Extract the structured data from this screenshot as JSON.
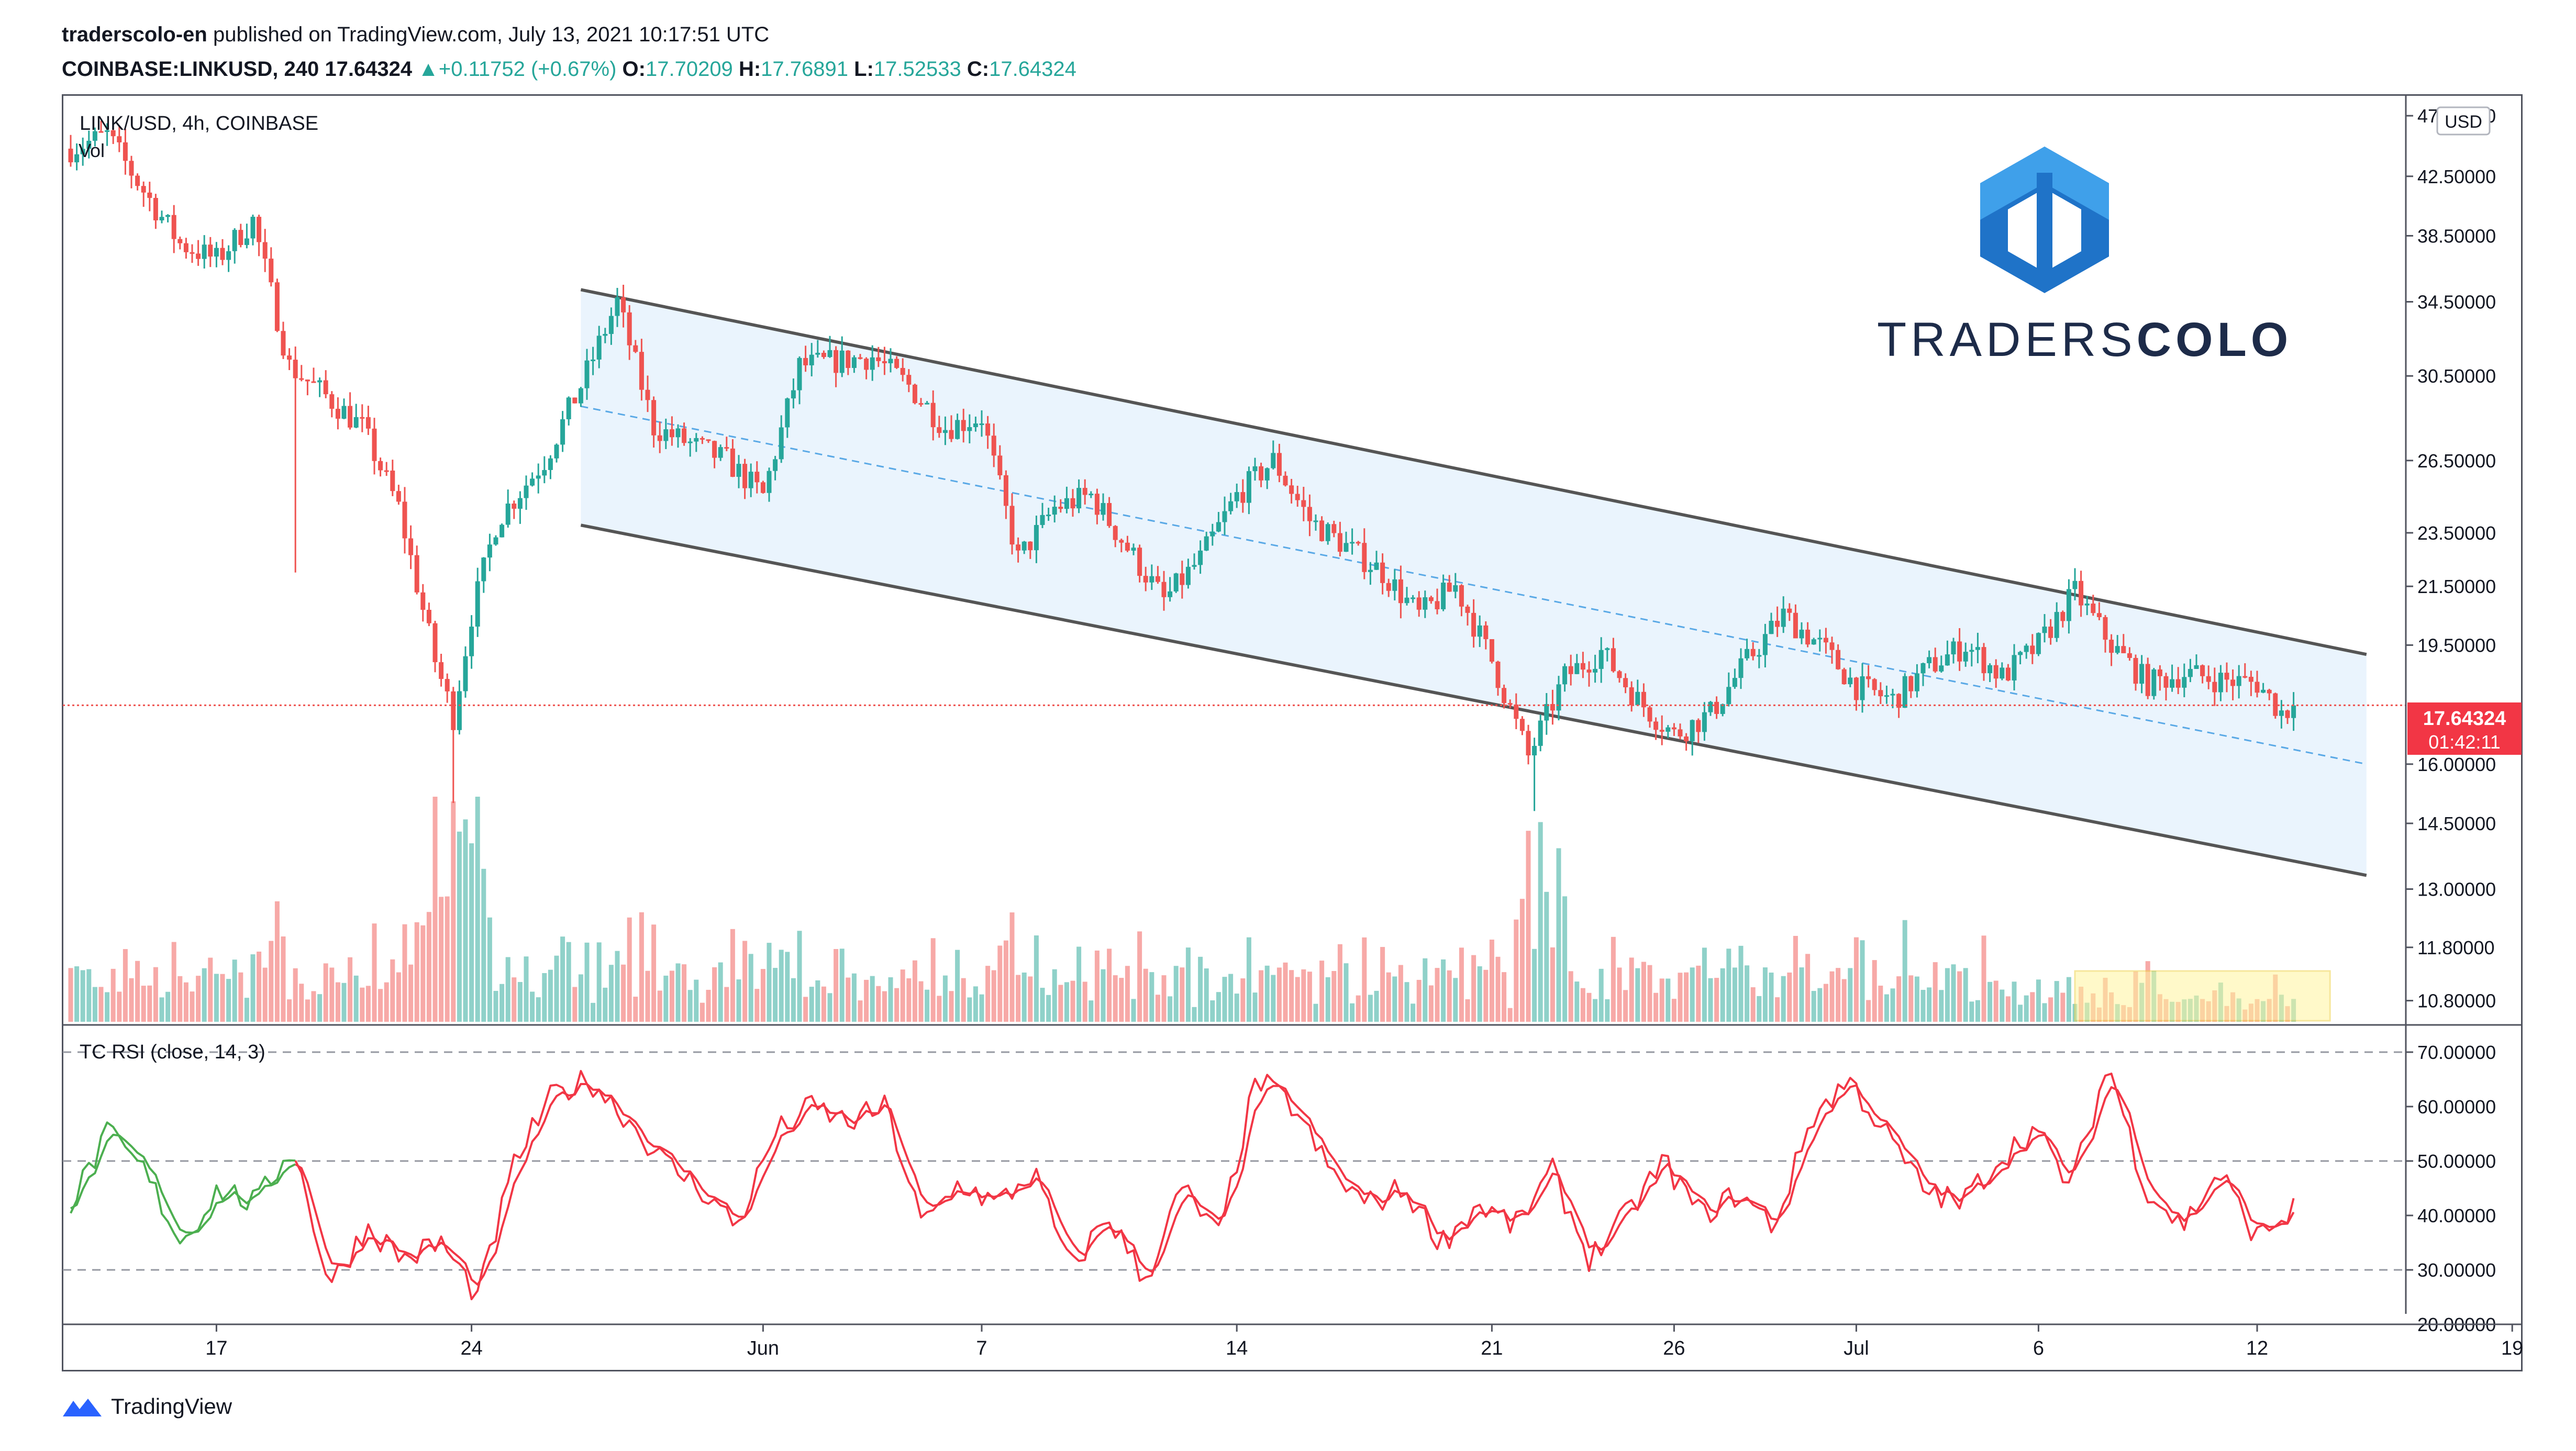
{
  "header": {
    "publisher": "traderscolo-en",
    "published_text": "published on TradingView.com, July 13, 2021 10:17:51 UTC",
    "symbol_line": "COINBASE:LINKUSD, 240",
    "last": "17.64324",
    "change_arrow": "▲",
    "change": "+0.11752 (+0.67%)",
    "o_label": "O:",
    "o_value": "17.70209",
    "h_label": "H:",
    "h_value": "17.76891",
    "l_label": "L:",
    "l_value": "17.52533",
    "c_label": "C:",
    "c_value": "17.64324"
  },
  "main_pane": {
    "legend": "LINK/USD, 4h, COINBASE",
    "vol_label": "Vol",
    "currency_badge": "USD",
    "last_price_tag": "17.64324",
    "countdown_tag": "01:42:11"
  },
  "rsi_pane": {
    "legend": "TC RSI (close, 14, 3)"
  },
  "logo": {
    "text_light": "TRADERS",
    "text_bold": "COLO"
  },
  "footer": {
    "brand": "TradingView"
  },
  "colors": {
    "up": "#26a69a",
    "down": "#ef5350",
    "channel_fill": "#e3f0fc",
    "channel_line": "#555555",
    "midline": "#5aa9e6",
    "rsi_red": "#f23645",
    "rsi_green": "#4caf50",
    "logo_blue": "#1f73c8"
  },
  "chart_data": [
    {
      "type": "candlestick",
      "symbol": "LINK/USD",
      "timeframe": "4h",
      "exchange": "COINBASE",
      "y_scale": "log",
      "ylim": [
        10.4,
        48.5
      ],
      "y_ticks": [
        "47.00000",
        "42.50000",
        "38.50000",
        "34.50000",
        "30.50000",
        "26.50000",
        "23.50000",
        "21.50000",
        "19.50000",
        "16.00000",
        "14.50000",
        "13.00000",
        "11.80000",
        "10.80000"
      ],
      "x_ticks": [
        "17",
        "24",
        "Jun",
        "7",
        "14",
        "21",
        "26",
        "Jul",
        "6",
        "12",
        "19"
      ],
      "price_path": [
        [
          "2021-05-13",
          44.5
        ],
        [
          "2021-05-14",
          45.5
        ],
        [
          "2021-05-15",
          41.5
        ],
        [
          "2021-05-16",
          38.0
        ],
        [
          "2021-05-17",
          37.0
        ],
        [
          "2021-05-18",
          39.5
        ],
        [
          "2021-05-19",
          31.0
        ],
        [
          "2021-05-20",
          29.5
        ],
        [
          "2021-05-21",
          28.0
        ],
        [
          "2021-05-22",
          24.5
        ],
        [
          "2021-05-23",
          19.0
        ],
        [
          "2021-05-23.5",
          17.3
        ],
        [
          "2021-05-24",
          20.5
        ],
        [
          "2021-05-24.7",
          24.0
        ],
        [
          "2021-05-26",
          26.5
        ],
        [
          "2021-05-27",
          30.0
        ],
        [
          "2021-05-28",
          34.5
        ],
        [
          "2021-05-29",
          28.0
        ],
        [
          "2021-05-31",
          26.5
        ],
        [
          "2021-06-01",
          25.0
        ],
        [
          "2021-06-02",
          31.0
        ],
        [
          "2021-06-04",
          31.5
        ],
        [
          "2021-06-05",
          30.0
        ],
        [
          "2021-06-06",
          28.0
        ],
        [
          "2021-06-07",
          28.5
        ],
        [
          "2021-06-08",
          22.5
        ],
        [
          "2021-06-09",
          24.5
        ],
        [
          "2021-06-10",
          25.0
        ],
        [
          "2021-06-12",
          21.0
        ],
        [
          "2021-06-13",
          22.5
        ],
        [
          "2021-06-14",
          25.0
        ],
        [
          "2021-06-15",
          26.5
        ],
        [
          "2021-06-16",
          24.0
        ],
        [
          "2021-06-18",
          22.0
        ],
        [
          "2021-06-19",
          20.5
        ],
        [
          "2021-06-20",
          21.5
        ],
        [
          "2021-06-21",
          19.0
        ],
        [
          "2021-06-22",
          16.2
        ],
        [
          "2021-06-23",
          18.5
        ],
        [
          "2021-06-24",
          19.3
        ],
        [
          "2021-06-25",
          17.8
        ],
        [
          "2021-06-26",
          16.8
        ],
        [
          "2021-06-27",
          17.4
        ],
        [
          "2021-06-28",
          19.0
        ],
        [
          "2021-06-29",
          20.5
        ],
        [
          "2021-06-30",
          19.5
        ],
        [
          "2021-07-01",
          18.2
        ],
        [
          "2021-07-02",
          17.8
        ],
        [
          "2021-07-03",
          18.8
        ],
        [
          "2021-07-04",
          19.5
        ],
        [
          "2021-07-05",
          18.5
        ],
        [
          "2021-07-06",
          19.5
        ],
        [
          "2021-07-07",
          21.3
        ],
        [
          "2021-07-08",
          19.5
        ],
        [
          "2021-07-09",
          18.3
        ],
        [
          "2021-07-10",
          18.6
        ],
        [
          "2021-07-11",
          18.4
        ],
        [
          "2021-07-12",
          18.3
        ],
        [
          "2021-07-12.7",
          17.4
        ],
        [
          "2021-07-13",
          17.64
        ]
      ],
      "drawings": {
        "channel_upper": [
          [
            "2021-05-27",
            35.2
          ],
          [
            "2021-07-15",
            19.2
          ]
        ],
        "channel_lower": [
          [
            "2021-05-27",
            23.8
          ],
          [
            "2021-07-15",
            13.3
          ]
        ],
        "channel_mid": [
          [
            "2021-05-27",
            29.0
          ],
          [
            "2021-07-15",
            16.0
          ]
        ],
        "current_price_line": 17.64324,
        "highlight_box": {
          "from": "2021-07-07",
          "to": "2021-07-14",
          "region": "volume"
        }
      }
    },
    {
      "type": "line",
      "name": "TC RSI (close, 14, 3)",
      "ylim": [
        20,
        75
      ],
      "y_ticks": [
        "70.00000",
        "60.00000",
        "50.00000",
        "40.00000",
        "30.00000",
        "20.00000"
      ],
      "levels": [
        70,
        50,
        30
      ],
      "values": [
        42,
        55,
        48,
        35,
        45,
        42,
        53,
        27,
        38,
        32,
        35,
        25,
        50,
        62,
        65,
        58,
        50,
        45,
        38,
        55,
        60,
        57,
        60,
        38,
        46,
        42,
        48,
        30,
        40,
        28,
        45,
        36,
        65,
        60,
        48,
        42,
        45,
        35,
        42,
        38,
        48,
        32,
        40,
        50,
        40,
        44,
        38,
        58,
        65,
        55,
        45,
        42,
        50,
        56,
        45,
        68,
        45,
        38,
        48,
        36,
        41
      ]
    }
  ]
}
